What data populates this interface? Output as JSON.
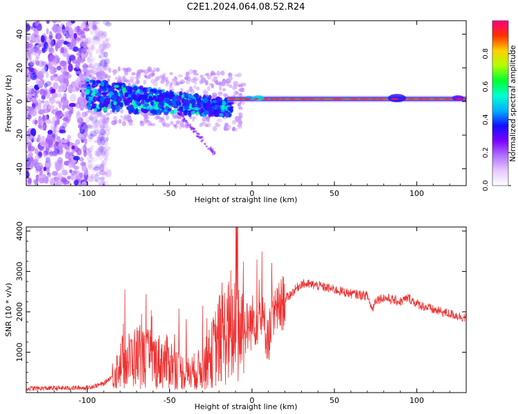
{
  "title": "C2E1.2024.064.08.52.R24",
  "chart_data": [
    {
      "type": "heatmap",
      "xlabel": "Height of straight line (km)",
      "ylabel": "Frequency (Hz)",
      "xlim": [
        -137,
        130
      ],
      "ylim": [
        -50,
        48
      ],
      "xticks": [
        -100,
        -50,
        0,
        50,
        100
      ],
      "yticks": [
        -40,
        -20,
        0,
        20,
        40
      ],
      "grid": false,
      "colorbar": {
        "label": "Normalized spectral amplitude",
        "range": [
          0,
          1
        ],
        "ticks": [
          "0.0",
          "0.2",
          "0.4",
          "0.6",
          "0.8"
        ],
        "colormap": [
          "#ffffff",
          "#e6c8ff",
          "#b070ff",
          "#7a00ff",
          "#1010ff",
          "#00b0ff",
          "#00ffd0",
          "#00ff30",
          "#b0ff00",
          "#ffd000",
          "#ff3000",
          "#ff0080"
        ]
      },
      "features": [
        {
          "region": "noise",
          "x": [
            -137,
            -95
          ],
          "y": [
            -50,
            48
          ],
          "amplitude": 0.1
        },
        {
          "region": "scattered-echo",
          "x": [
            -100,
            -15
          ],
          "y": [
            -18,
            12
          ],
          "amplitude": 0.5
        },
        {
          "region": "streak",
          "x": [
            -45,
            -22
          ],
          "y": [
            -32,
            -6
          ],
          "amplitude": 0.15
        },
        {
          "region": "narrowband-line",
          "x": [
            -15,
            130
          ],
          "y": [
            0,
            3
          ],
          "amplitude": 0.9
        }
      ]
    },
    {
      "type": "line",
      "xlabel": "Height of straight line (km)",
      "ylabel": "SNR (10 * v/v)",
      "xlim": [
        -137,
        130
      ],
      "ylim": [
        0,
        4100
      ],
      "xticks": [
        -100,
        -50,
        0,
        50,
        100
      ],
      "yticks": [
        1000,
        2000,
        3000,
        4000
      ],
      "grid": false,
      "series": [
        {
          "color": "#ee3030",
          "x": [
            -137,
            -100,
            -90,
            -85,
            -80,
            -70,
            -60,
            -50,
            -40,
            -30,
            -25,
            -20,
            -15,
            -10,
            -5,
            0,
            5,
            10,
            15,
            20,
            25,
            30,
            40,
            50,
            60,
            70,
            73,
            75,
            80,
            90,
            95,
            100,
            110,
            120,
            130
          ],
          "values": [
            100,
            120,
            220,
            400,
            700,
            900,
            800,
            750,
            450,
            600,
            900,
            1300,
            1500,
            1450,
            1500,
            1750,
            1900,
            1400,
            2000,
            2300,
            2500,
            2700,
            2650,
            2550,
            2450,
            2400,
            2050,
            2300,
            2350,
            2250,
            2350,
            2200,
            2050,
            1950,
            1850
          ]
        }
      ]
    }
  ]
}
